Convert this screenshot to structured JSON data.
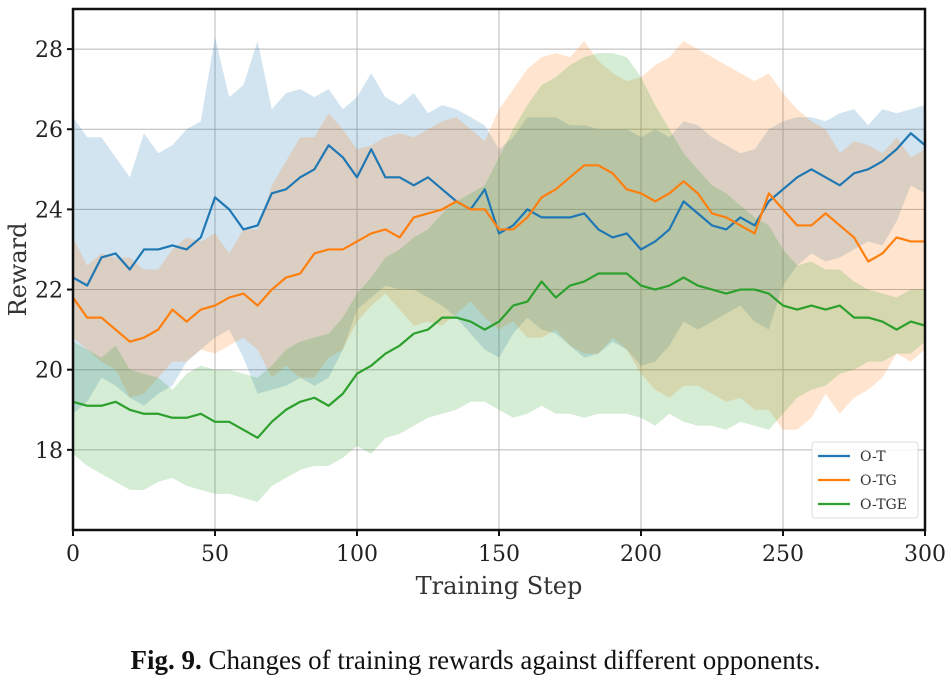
{
  "chart_data": {
    "type": "line",
    "title": "",
    "xlabel": "Training Step",
    "ylabel": "Reward",
    "xlim": [
      0,
      300
    ],
    "ylim": [
      16,
      29
    ],
    "xticks": [
      0,
      50,
      100,
      150,
      200,
      250,
      300
    ],
    "yticks": [
      18,
      20,
      22,
      24,
      26,
      28
    ],
    "xtick_labels": [
      "0",
      "50",
      "100",
      "150",
      "200",
      "250",
      "300"
    ],
    "ytick_labels": [
      "18",
      "20",
      "22",
      "24",
      "26",
      "28"
    ],
    "grid": true,
    "legend_position": "bottom-right",
    "x": [
      0,
      5,
      10,
      15,
      20,
      25,
      30,
      35,
      40,
      45,
      50,
      55,
      60,
      65,
      70,
      75,
      80,
      85,
      90,
      95,
      100,
      105,
      110,
      115,
      120,
      125,
      130,
      135,
      140,
      145,
      150,
      155,
      160,
      165,
      170,
      175,
      180,
      185,
      190,
      195,
      200,
      205,
      210,
      215,
      220,
      225,
      230,
      235,
      240,
      245,
      250,
      255,
      260,
      265,
      270,
      275,
      280,
      285,
      290,
      295,
      300
    ],
    "series": [
      {
        "name": "O-T",
        "color": "#1f77b4",
        "values": [
          22.3,
          22.1,
          22.8,
          22.9,
          22.5,
          23.0,
          23.0,
          23.1,
          23.0,
          23.3,
          24.3,
          24.0,
          23.5,
          23.6,
          24.4,
          24.5,
          24.8,
          25.0,
          25.6,
          25.3,
          24.8,
          25.5,
          24.8,
          24.8,
          24.6,
          24.8,
          24.5,
          24.2,
          24.0,
          24.5,
          23.4,
          23.6,
          24.0,
          23.8,
          23.8,
          23.8,
          23.9,
          23.5,
          23.3,
          23.4,
          23.0,
          23.2,
          23.5,
          24.2,
          23.9,
          23.6,
          23.5,
          23.8,
          23.6,
          24.2,
          24.5,
          24.8,
          25.0,
          24.8,
          24.6,
          24.9,
          25.0,
          25.2,
          25.5,
          25.9,
          25.6
        ],
        "upper": [
          26.3,
          25.8,
          25.8,
          25.3,
          24.8,
          25.9,
          25.4,
          25.6,
          26.0,
          26.2,
          28.3,
          26.8,
          27.1,
          28.2,
          26.5,
          26.9,
          27.0,
          26.8,
          27.0,
          26.5,
          26.8,
          27.4,
          26.8,
          26.6,
          26.9,
          26.4,
          26.6,
          26.5,
          26.3,
          26.1,
          25.5,
          25.8,
          26.3,
          26.3,
          26.3,
          26.1,
          26.1,
          26.0,
          26.0,
          26.0,
          25.8,
          26.0,
          25.8,
          26.2,
          26.1,
          25.8,
          25.6,
          25.4,
          25.5,
          26.0,
          26.2,
          26.3,
          26.3,
          26.2,
          26.4,
          26.5,
          26.1,
          26.5,
          26.4,
          26.5,
          26.6
        ],
        "lower": [
          18.9,
          19.2,
          19.8,
          19.6,
          19.3,
          19.1,
          19.4,
          19.6,
          20.2,
          20.5,
          20.8,
          21.0,
          20.3,
          19.4,
          19.5,
          19.6,
          19.8,
          19.6,
          19.8,
          20.5,
          21.5,
          21.8,
          22.1,
          22.0,
          22.0,
          21.8,
          21.6,
          21.3,
          20.9,
          20.5,
          20.3,
          20.9,
          21.3,
          21.0,
          20.9,
          20.6,
          20.3,
          20.4,
          20.7,
          20.5,
          20.1,
          20.2,
          20.6,
          21.2,
          21.0,
          21.2,
          21.4,
          21.6,
          21.2,
          21.0,
          22.1,
          22.6,
          22.9,
          22.7,
          22.8,
          23.0,
          23.2,
          23.1,
          23.7,
          24.6,
          24.4
        ]
      },
      {
        "name": "O-TG",
        "color": "#ff7f0e",
        "values": [
          21.8,
          21.3,
          21.3,
          21.0,
          20.7,
          20.8,
          21.0,
          21.5,
          21.2,
          21.5,
          21.6,
          21.8,
          21.9,
          21.6,
          22.0,
          22.3,
          22.4,
          22.9,
          23.0,
          23.0,
          23.2,
          23.4,
          23.5,
          23.3,
          23.8,
          23.9,
          24.0,
          24.2,
          24.0,
          24.0,
          23.5,
          23.5,
          23.8,
          24.3,
          24.5,
          24.8,
          25.1,
          25.1,
          24.9,
          24.5,
          24.4,
          24.2,
          24.4,
          24.7,
          24.4,
          23.9,
          23.8,
          23.6,
          23.4,
          24.4,
          24.0,
          23.6,
          23.6,
          23.9,
          23.6,
          23.3,
          22.7,
          22.9,
          23.3,
          23.2,
          23.2
        ],
        "upper": [
          23.3,
          22.6,
          22.9,
          22.8,
          22.8,
          22.5,
          22.5,
          23.0,
          23.3,
          23.2,
          23.4,
          22.9,
          23.5,
          23.5,
          24.6,
          25.2,
          25.8,
          25.8,
          26.4,
          26.0,
          25.5,
          25.6,
          25.8,
          25.9,
          25.8,
          26.0,
          26.2,
          26.3,
          26.0,
          25.7,
          26.5,
          27.0,
          27.5,
          27.8,
          27.9,
          27.8,
          28.2,
          27.7,
          27.4,
          27.2,
          27.3,
          27.6,
          27.8,
          28.2,
          28.0,
          27.8,
          27.6,
          27.4,
          27.2,
          27.4,
          26.9,
          26.5,
          26.2,
          26.0,
          25.4,
          25.7,
          25.6,
          25.4,
          25.8,
          25.3,
          25.5
        ],
        "lower": [
          20.8,
          20.5,
          20.2,
          20.0,
          19.3,
          19.4,
          19.8,
          20.2,
          20.2,
          20.5,
          20.4,
          20.6,
          20.8,
          20.5,
          19.8,
          20.1,
          19.8,
          19.8,
          20.3,
          20.5,
          21.2,
          21.6,
          21.9,
          21.5,
          21.1,
          21.2,
          21.1,
          21.4,
          21.7,
          21.3,
          21.0,
          21.2,
          20.8,
          20.8,
          21.0,
          20.6,
          20.4,
          20.4,
          20.8,
          20.5,
          19.9,
          19.5,
          19.3,
          19.6,
          19.6,
          19.4,
          19.2,
          19.3,
          19.0,
          19.0,
          18.5,
          18.5,
          18.8,
          19.4,
          18.9,
          19.3,
          19.5,
          19.8,
          20.4,
          20.2,
          20.5
        ]
      },
      {
        "name": "O-TGE",
        "color": "#2ca02c",
        "values": [
          19.2,
          19.1,
          19.1,
          19.2,
          19.0,
          18.9,
          18.9,
          18.8,
          18.8,
          18.9,
          18.7,
          18.7,
          18.5,
          18.3,
          18.7,
          19.0,
          19.2,
          19.3,
          19.1,
          19.4,
          19.9,
          20.1,
          20.4,
          20.6,
          20.9,
          21.0,
          21.3,
          21.3,
          21.2,
          21.0,
          21.2,
          21.6,
          21.7,
          22.2,
          21.8,
          22.1,
          22.2,
          22.4,
          22.4,
          22.4,
          22.1,
          22.0,
          22.1,
          22.3,
          22.1,
          22.0,
          21.9,
          22.0,
          22.0,
          21.9,
          21.6,
          21.5,
          21.6,
          21.5,
          21.6,
          21.3,
          21.3,
          21.2,
          21.0,
          21.2,
          21.1
        ],
        "upper": [
          20.7,
          20.5,
          20.3,
          20.6,
          20.0,
          19.9,
          19.8,
          19.5,
          19.9,
          20.1,
          20.0,
          20.0,
          19.9,
          19.8,
          20.1,
          20.5,
          20.7,
          20.8,
          20.9,
          21.3,
          21.9,
          22.3,
          22.8,
          23.0,
          23.3,
          23.5,
          23.9,
          24.2,
          24.4,
          24.6,
          25.3,
          26.0,
          26.6,
          27.1,
          27.3,
          27.6,
          27.8,
          27.9,
          27.9,
          27.8,
          27.3,
          26.6,
          26.0,
          25.4,
          25.0,
          24.6,
          24.4,
          24.1,
          23.8,
          23.6,
          23.0,
          22.6,
          22.7,
          22.5,
          22.5,
          22.2,
          22.0,
          21.9,
          21.8,
          22.0,
          22.0
        ],
        "lower": [
          17.9,
          17.6,
          17.4,
          17.2,
          17.0,
          17.0,
          17.2,
          17.3,
          17.1,
          17.0,
          16.9,
          16.9,
          16.8,
          16.7,
          17.1,
          17.3,
          17.5,
          17.6,
          17.6,
          17.8,
          18.1,
          17.9,
          18.3,
          18.4,
          18.6,
          18.8,
          18.9,
          19.0,
          19.2,
          19.2,
          19.0,
          18.8,
          18.9,
          19.1,
          18.9,
          18.9,
          18.8,
          18.9,
          18.9,
          18.9,
          18.8,
          18.6,
          18.9,
          18.7,
          18.6,
          18.6,
          18.5,
          18.7,
          18.6,
          18.5,
          18.9,
          19.3,
          19.5,
          19.6,
          19.9,
          20.0,
          20.2,
          20.2,
          20.4,
          20.4,
          20.7
        ]
      }
    ]
  },
  "caption": {
    "label": "Fig. 9.",
    "text": " Changes of training rewards against different opponents."
  }
}
